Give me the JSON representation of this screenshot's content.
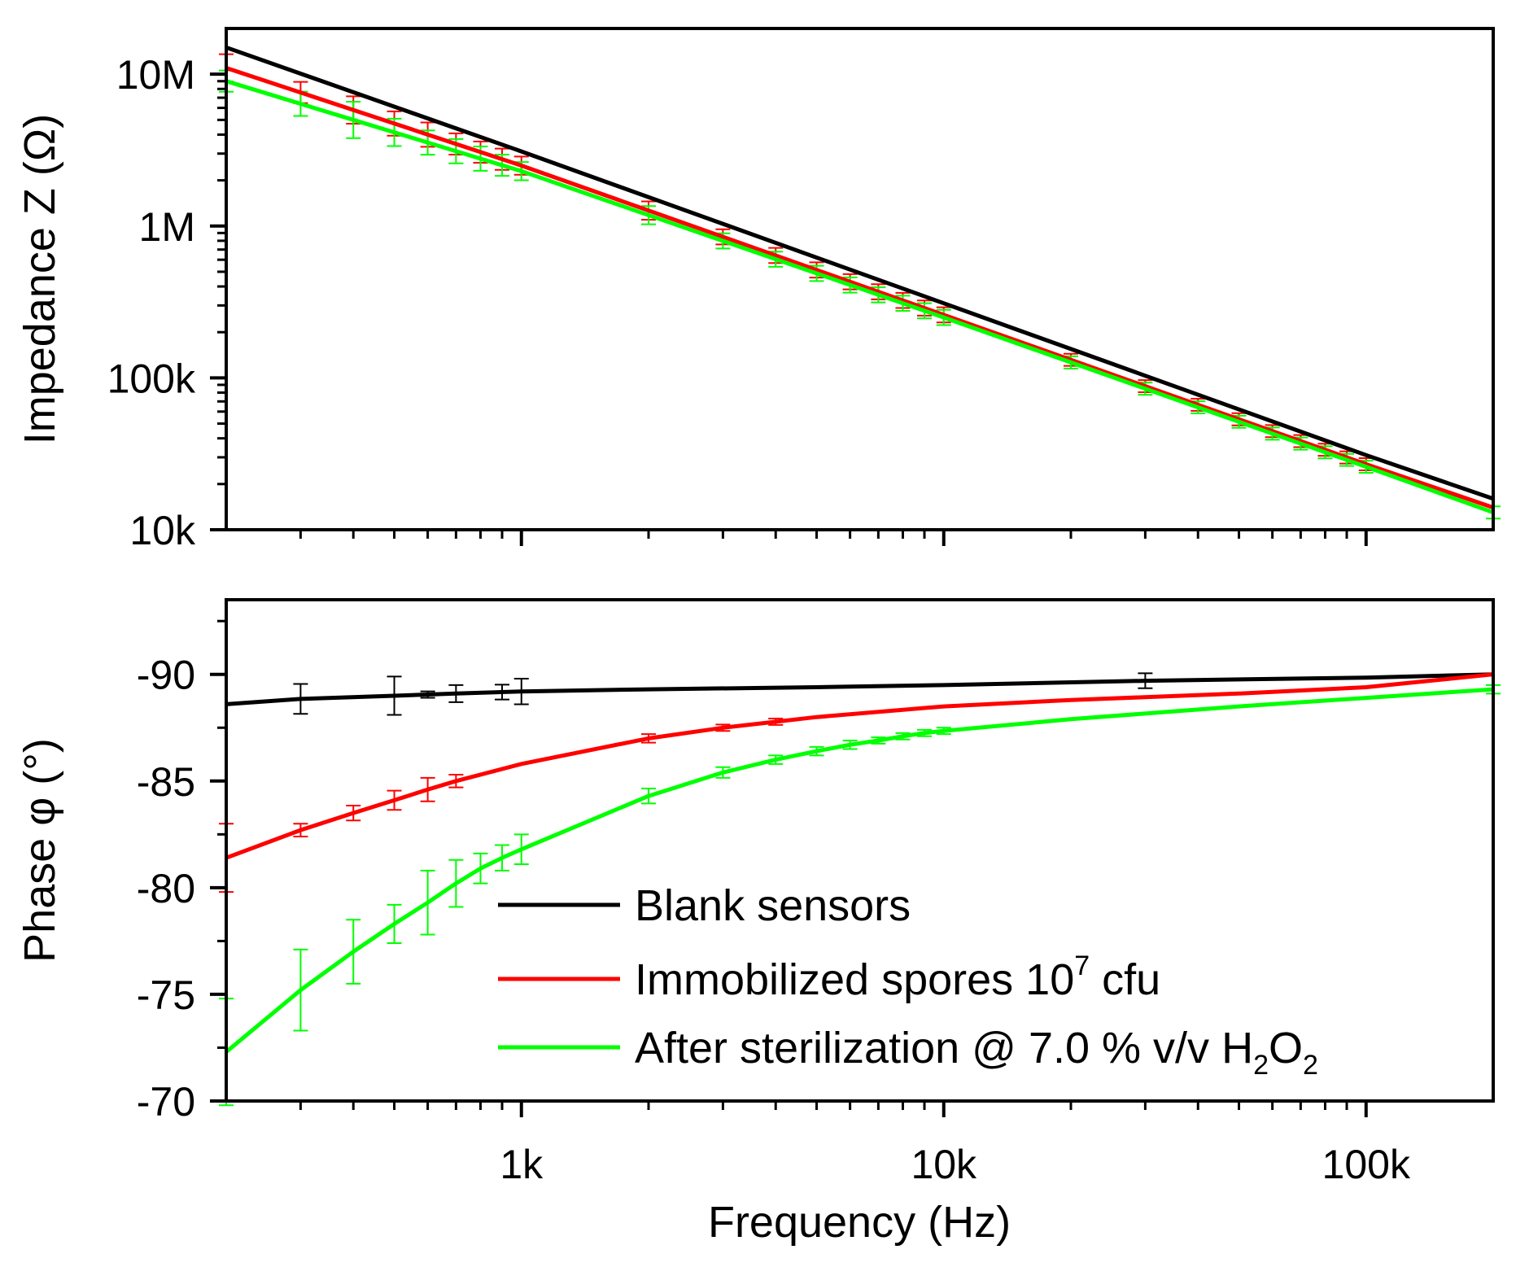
{
  "chart_data": {
    "type": "line",
    "x_axis": {
      "label": "Frequency (Hz)",
      "scale": "log",
      "range": [
        200,
        200000
      ],
      "major_ticks": [
        1000,
        10000,
        100000
      ],
      "tick_labels": [
        "1k",
        "10k",
        "100k"
      ]
    },
    "panels": [
      {
        "id": "impedance",
        "ylabel": "Impedance Z (Ω)",
        "yscale": "log",
        "ylim": [
          10000,
          20000000
        ],
        "y_ticks": [
          10000,
          100000,
          1000000,
          10000000
        ],
        "y_tick_labels": [
          "10k",
          "100k",
          "1M",
          "10M"
        ],
        "series": [
          {
            "name": "Blank sensors",
            "color": "#000000",
            "x": [
              200,
              1000,
              10000,
              100000,
              200000
            ],
            "y": [
              15000000,
              3100000,
              310000,
              31000,
              16000
            ],
            "error_x": [],
            "error_y": []
          },
          {
            "name": "Immobilized spores 10^7 cfu",
            "color": "#ff0000",
            "x": [
              200,
              1000,
              10000,
              100000,
              200000
            ],
            "y": [
              11000000,
              2500000,
              260000,
              27000,
              14000
            ],
            "error_x": [
              200,
              300,
              400,
              500,
              600,
              700,
              800,
              900,
              1000,
              2000,
              3000,
              4000,
              5000,
              6000,
              7000,
              8000,
              9000,
              10000,
              20000,
              30000,
              40000,
              50000,
              60000,
              70000,
              80000,
              90000,
              100000
            ],
            "error_y": [
              0.09,
              0.07,
              0.09,
              0.08,
              0.08,
              0.07,
              0.07,
              0.07,
              0.06,
              0.06,
              0.05,
              0.05,
              0.05,
              0.05,
              0.05,
              0.05,
              0.05,
              0.05,
              0.04,
              0.04,
              0.04,
              0.04,
              0.04,
              0.04,
              0.04,
              0.04,
              0.04
            ]
          },
          {
            "name": "After sterilization @ 7.0 % v/v H2O2",
            "color": "#00ff00",
            "x": [
              200,
              1000,
              10000,
              100000,
              200000
            ],
            "y": [
              9000000,
              2300000,
              250000,
              26000,
              13000
            ],
            "error_x": [
              200,
              300,
              400,
              500,
              600,
              700,
              800,
              900,
              1000,
              2000,
              3000,
              4000,
              5000,
              6000,
              7000,
              8000,
              9000,
              10000,
              20000,
              30000,
              40000,
              50000,
              60000,
              70000,
              80000,
              90000,
              100000,
              200000
            ],
            "error_y": [
              0.07,
              0.08,
              0.12,
              0.09,
              0.08,
              0.08,
              0.08,
              0.07,
              0.06,
              0.06,
              0.05,
              0.05,
              0.05,
              0.05,
              0.05,
              0.05,
              0.05,
              0.05,
              0.04,
              0.04,
              0.04,
              0.04,
              0.04,
              0.04,
              0.04,
              0.04,
              0.04,
              0.04
            ]
          }
        ]
      },
      {
        "id": "phase",
        "ylabel": "Phase φ (°)",
        "yscale": "linear",
        "ylim": [
          -70,
          -93.5
        ],
        "y_ticks": [
          -70,
          -75,
          -80,
          -85,
          -90
        ],
        "y_tick_labels": [
          "-70",
          "-75",
          "-80",
          "-85",
          "-90"
        ],
        "series": [
          {
            "name": "Blank sensors",
            "color": "#000000",
            "x": [
              200,
              300,
              500,
              700,
              1000,
              2000,
              5000,
              10000,
              30000,
              100000,
              200000
            ],
            "y": [
              -88.6,
              -88.85,
              -89.0,
              -89.1,
              -89.2,
              -89.3,
              -89.4,
              -89.5,
              -89.7,
              -89.85,
              -90.0
            ],
            "error_x": [
              300,
              500,
              600,
              700,
              900,
              1000,
              30000
            ],
            "error_y": [
              0.7,
              0.9,
              0.15,
              0.4,
              0.35,
              0.6,
              0.35
            ]
          },
          {
            "name": "Immobilized spores 10^7 cfu",
            "color": "#ff0000",
            "x": [
              200,
              300,
              400,
              500,
              600,
              700,
              1000,
              2000,
              3000,
              5000,
              10000,
              20000,
              50000,
              100000,
              200000
            ],
            "y": [
              -81.4,
              -82.7,
              -83.5,
              -84.1,
              -84.6,
              -85.0,
              -85.8,
              -87.0,
              -87.5,
              -88.0,
              -88.5,
              -88.8,
              -89.1,
              -89.4,
              -90.0
            ],
            "error_x": [
              200,
              300,
              400,
              500,
              600,
              700,
              2000,
              3000,
              4000
            ],
            "error_y": [
              1.6,
              0.3,
              0.35,
              0.45,
              0.55,
              0.3,
              0.2,
              0.15,
              0.15
            ]
          },
          {
            "name": "After sterilization @ 7.0 % v/v H2O2",
            "color": "#00ff00",
            "x": [
              200,
              300,
              400,
              500,
              600,
              700,
              800,
              900,
              1000,
              2000,
              3000,
              4000,
              5000,
              6000,
              7000,
              8000,
              9000,
              10000,
              20000,
              50000,
              100000,
              200000
            ],
            "y": [
              -72.3,
              -75.2,
              -77.0,
              -78.3,
              -79.3,
              -80.2,
              -80.9,
              -81.4,
              -81.8,
              -84.3,
              -85.4,
              -86.0,
              -86.4,
              -86.7,
              -86.9,
              -87.1,
              -87.25,
              -87.35,
              -87.9,
              -88.5,
              -88.9,
              -89.3
            ],
            "error_x": [
              200,
              300,
              400,
              500,
              600,
              700,
              800,
              900,
              1000,
              2000,
              3000,
              4000,
              5000,
              6000,
              7000,
              8000,
              9000,
              10000,
              200000
            ],
            "error_y": [
              2.5,
              1.9,
              1.5,
              0.9,
              1.5,
              1.1,
              0.7,
              0.6,
              0.7,
              0.35,
              0.25,
              0.2,
              0.2,
              0.2,
              0.15,
              0.15,
              0.15,
              0.15,
              0.2
            ]
          }
        ]
      }
    ],
    "legend": {
      "placement": "lower-right of phase panel",
      "entries": [
        {
          "color": "#000000",
          "label": "Blank sensors"
        },
        {
          "color": "#ff0000",
          "label": "Immobilized spores 10",
          "sup": "7",
          "tail": " cfu"
        },
        {
          "color": "#00ff00",
          "label": "After sterilization @ 7.0 % v/v H",
          "sub1": "2",
          "mid": "O",
          "sub2": "2"
        }
      ]
    }
  }
}
